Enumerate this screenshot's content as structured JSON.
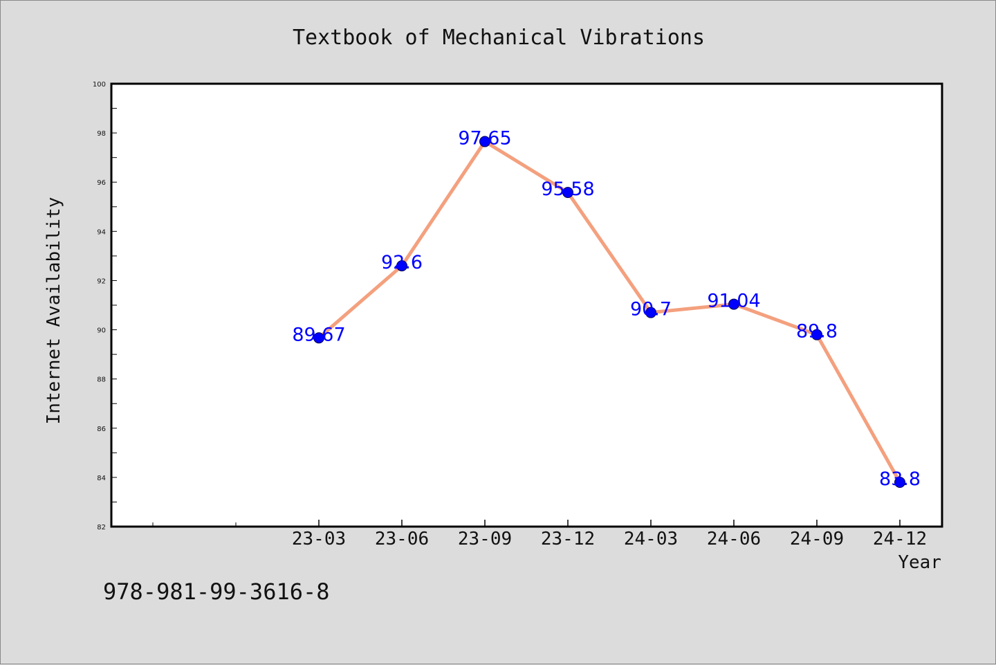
{
  "chart_data": {
    "type": "line",
    "title": "Textbook of Mechanical Vibrations",
    "xlabel": "Year",
    "ylabel": "Internet Availability",
    "categories": [
      "23-03",
      "23-06",
      "23-09",
      "23-12",
      "24-03",
      "24-06",
      "24-09",
      "24-12"
    ],
    "series": [
      {
        "values": [
          89.67,
          92.6,
          97.65,
          95.58,
          90.7,
          91.04,
          89.8,
          83.8
        ],
        "data_labels": [
          "89.67",
          "92.6",
          "97.65",
          "95.58",
          "90.7",
          "91.04",
          "89.8",
          "83.8"
        ]
      }
    ],
    "ylim": [
      82,
      100
    ],
    "yticks": [
      82,
      84,
      86,
      88,
      90,
      92,
      94,
      96,
      98,
      100
    ],
    "ytick_labels": [
      "82",
      "84",
      "86",
      "88",
      "90",
      "92",
      "94",
      "96",
      "98",
      "100"
    ],
    "grid": false,
    "legend": "none",
    "colors": {
      "line": "#f4a07e",
      "marker": "#0000ff",
      "data_label": "#0000ff",
      "plot_background": "#ffffff",
      "figure_background": "#dcdcdc"
    }
  },
  "footer": {
    "isbn": "978-981-99-3616-8"
  }
}
